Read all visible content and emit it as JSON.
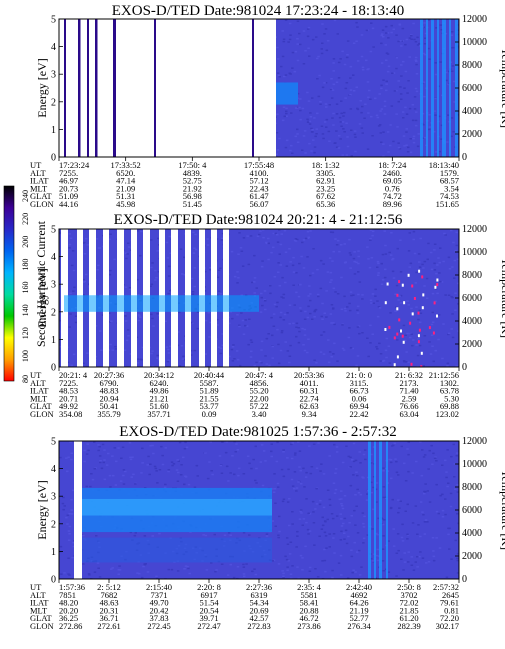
{
  "colorbar": {
    "label": "Second Harmonic Current",
    "ticks": [
      "240",
      "220",
      "200",
      "180",
      "160",
      "140",
      "120",
      "100",
      "80"
    ],
    "colors": [
      "#ff0000",
      "#ffa000",
      "#ffff00",
      "#00c800",
      "#00dca0",
      "#00b4ff",
      "#0064f0",
      "#2828c8",
      "#3c0096",
      "#000000"
    ]
  },
  "chart_data": [
    {
      "type": "heatmap",
      "title": "EXOS-D/TED   Date:981024   17:23:24 - 18:13:40",
      "ylabel": "Energy [eV]",
      "y2label": "Temperature [K]",
      "ylim": [
        0,
        5
      ],
      "y2lim": [
        0,
        12000
      ],
      "yticks": [
        "0",
        "1",
        "2",
        "3",
        "4",
        "5"
      ],
      "y2ticks": [
        "0",
        "2000",
        "4000",
        "6000",
        "8000",
        "10000",
        "12000"
      ],
      "ephemeris_labels": [
        "UT",
        "ALT",
        "ILAT",
        "MLT",
        "GLAT",
        "GLON"
      ],
      "ephemeris": [
        [
          "17:23:24",
          "7255.",
          "46.97",
          "20.73",
          "51.09",
          "44.16"
        ],
        [
          "17:33:52",
          "6520.",
          "47.14",
          "21.09",
          "51.31",
          "45.98"
        ],
        [
          "17:50: 4",
          "4839.",
          "52.75",
          "21.92",
          "56.98",
          "51.45"
        ],
        [
          "17:55:48",
          "4100.",
          "57.12",
          "22.43",
          "61.47",
          "56.07"
        ],
        [
          "18: 1:32",
          "3305.",
          "62.91",
          "23.25",
          "67.62",
          "65.36"
        ],
        [
          "18: 7:24",
          "2460.",
          "69.05",
          "0.76",
          "74.72",
          "89.96"
        ],
        [
          "18:13:40",
          "1579.",
          "68.57",
          "3.54",
          "74.53",
          "151.65"
        ]
      ]
    },
    {
      "type": "heatmap",
      "title": "EXOS-D/TED   Date:981024   20:21: 4 - 21:12:56",
      "ylabel": "Energy [eV]",
      "y2label": "Temperature [K]",
      "ylim": [
        0,
        5
      ],
      "y2lim": [
        0,
        12000
      ],
      "yticks": [
        "0",
        "1",
        "2",
        "3",
        "4",
        "5"
      ],
      "y2ticks": [
        "0",
        "2000",
        "4000",
        "6000",
        "8000",
        "10000",
        "12000"
      ],
      "ephemeris_labels": [
        "UT",
        "ALT",
        "ILAT",
        "MLT",
        "GLAT",
        "GLON"
      ],
      "ephemeris": [
        [
          "20:21: 4",
          "7225.",
          "48.53",
          "20.71",
          "49.92",
          "354.08"
        ],
        [
          "20:27:36",
          "6790.",
          "48.83",
          "20.94",
          "50.41",
          "355.79"
        ],
        [
          "20:34:12",
          "6240.",
          "49.86",
          "21.21",
          "51.60",
          "357.71"
        ],
        [
          "20:40:44",
          "5587.",
          "51.89",
          "21.55",
          "53.77",
          "0.09"
        ],
        [
          "20:47: 4",
          "4856.",
          "55.20",
          "22.00",
          "57.22",
          "3.40"
        ],
        [
          "20:53:36",
          "4011.",
          "60.31",
          "22.74",
          "62.63",
          "9.34"
        ],
        [
          "21: 0: 0",
          "3115.",
          "66.73",
          "0.06",
          "69.94",
          "22.42"
        ],
        [
          "21: 6:32",
          "2173.",
          "71.40",
          "2.59",
          "76.66",
          "63.04"
        ],
        [
          "21:12:56",
          "1302.",
          "63.78",
          "5.30",
          "69.88",
          "123.02"
        ]
      ]
    },
    {
      "type": "heatmap",
      "title": "EXOS-D/TED   Date:981025   1:57:36 - 2:57:32",
      "ylabel": "Energy [eV]",
      "y2label": "Temperature [K]",
      "ylim": [
        0,
        5
      ],
      "y2lim": [
        0,
        12000
      ],
      "yticks": [
        "0",
        "1",
        "2",
        "3",
        "4",
        "5"
      ],
      "y2ticks": [
        "0",
        "2000",
        "4000",
        "6000",
        "8000",
        "10000",
        "12000"
      ],
      "ephemeris_labels": [
        "UT",
        "ALT",
        "ILAT",
        "MLT",
        "GLAT",
        "GLON"
      ],
      "ephemeris": [
        [
          "1:57:36",
          "7851",
          "48.20",
          "20.20",
          "36.25",
          "272.86"
        ],
        [
          "2: 5:12",
          "7682",
          "48.63",
          "20.31",
          "36.71",
          "272.61"
        ],
        [
          "2:15:40",
          "7371",
          "49.70",
          "20.42",
          "37.83",
          "272.45"
        ],
        [
          "2:20: 8",
          "6917",
          "51.54",
          "20.54",
          "39.71",
          "272.47"
        ],
        [
          "2:27:36",
          "6319",
          "54.34",
          "20.69",
          "42.57",
          "272.83"
        ],
        [
          "2:35: 4",
          "5581",
          "58.41",
          "20.88",
          "46.72",
          "273.86"
        ],
        [
          "2:42:40",
          "4692",
          "64.26",
          "21.19",
          "52.77",
          "276.34"
        ],
        [
          "2:50: 8",
          "3702",
          "72.02",
          "21.85",
          "61.20",
          "282.39"
        ],
        [
          "2:57:32",
          "2645",
          "79.61",
          "0.81",
          "72.20",
          "302.17"
        ]
      ]
    }
  ]
}
